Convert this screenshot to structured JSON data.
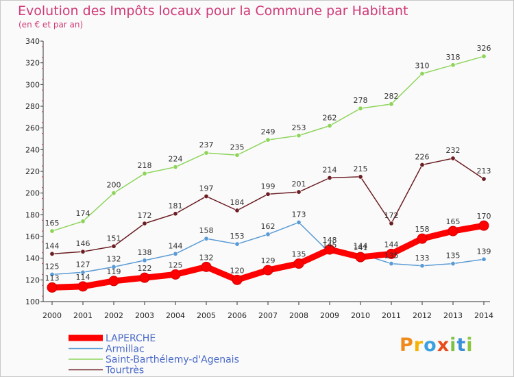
{
  "title": "Evolution des Impôts locaux pour la Commune par Habitant",
  "subtitle": "(en € et par an)",
  "logo": {
    "letters": [
      "P",
      "r",
      "o",
      "x",
      "i",
      "t",
      "i"
    ],
    "colors": [
      "#f08a1c",
      "#f5b400",
      "#3aa0e0",
      "#e84c1a",
      "#7cc242",
      "#3a8fd9",
      "#8cc63f"
    ]
  },
  "chart_data": {
    "type": "line",
    "x": [
      "2000",
      "2001",
      "2002",
      "2003",
      "2004",
      "2005",
      "2006",
      "2007",
      "2008",
      "2009",
      "2010",
      "2011",
      "2012",
      "2013",
      "2014"
    ],
    "ylim": [
      100,
      340
    ],
    "yticks": [
      100,
      120,
      140,
      160,
      180,
      200,
      220,
      240,
      260,
      280,
      300,
      320,
      340
    ],
    "grid": false,
    "legend_position": "bottom-left",
    "series": [
      {
        "name": "LAPERCHE",
        "color": "#ff0000",
        "values": [
          113,
          114,
          119,
          122,
          125,
          132,
          120,
          129,
          135,
          148,
          141,
          144,
          158,
          165,
          170
        ]
      },
      {
        "name": "Armillac",
        "color": "#5b9bd5",
        "values": [
          125,
          127,
          132,
          138,
          144,
          158,
          153,
          162,
          173,
          145,
          144,
          135,
          133,
          135,
          139
        ]
      },
      {
        "name": "Saint-Barthélemy-d'Agenais",
        "color": "#8ed45a",
        "values": [
          165,
          174,
          200,
          218,
          224,
          237,
          235,
          249,
          253,
          262,
          278,
          282,
          310,
          318,
          326
        ]
      },
      {
        "name": "Tourtrès",
        "color": "#6b1e23",
        "values": [
          144,
          146,
          151,
          172,
          181,
          197,
          184,
          199,
          201,
          214,
          215,
          172,
          226,
          232,
          213
        ]
      }
    ]
  }
}
